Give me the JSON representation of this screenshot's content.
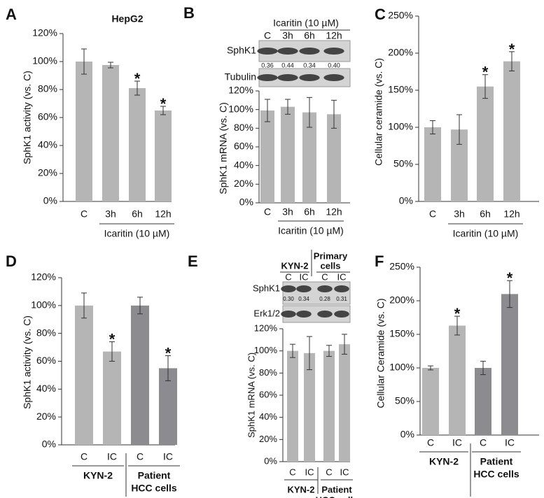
{
  "chart_data": [
    {
      "type": "bar",
      "panel": "A",
      "title": "HepG2",
      "y_label": "SphK1 activity (vs. C)",
      "categories": [
        "C",
        "3h",
        "6h",
        "12h"
      ],
      "values": [
        100,
        97.5,
        81,
        65
      ],
      "errors": [
        9,
        2,
        5,
        3
      ],
      "colors": [
        "#b5b5b5",
        "#b5b5b5",
        "#b5b5b5",
        "#b5b5b5"
      ],
      "significance": [
        null,
        null,
        "*",
        "*"
      ],
      "ylim": [
        0,
        120
      ],
      "yticks": [
        {
          "value": 0,
          "label": "0%"
        },
        {
          "value": 20,
          "label": "20%"
        },
        {
          "value": 40,
          "label": "40%"
        },
        {
          "value": 60,
          "label": "60%"
        },
        {
          "value": 80,
          "label": "80%"
        },
        {
          "value": 100,
          "label": "100%"
        },
        {
          "value": 120,
          "label": "120%"
        }
      ],
      "groups": [
        [
          "Icaritin (10 µM)"
        ]
      ]
    },
    {
      "type": "bar",
      "panel": "B",
      "y_label": "SphK1 mRNA (vs. C)",
      "categories": [
        "C",
        "3h",
        "6h",
        "12h"
      ],
      "values": [
        99,
        103,
        97,
        95
      ],
      "errors": [
        12,
        8,
        16,
        15
      ],
      "colors": [
        "#b5b5b5",
        "#b5b5b5",
        "#b5b5b5",
        "#b5b5b5"
      ],
      "ylim": [
        0,
        120
      ],
      "yticks": [
        {
          "value": 0,
          "label": "0%"
        },
        {
          "value": 20,
          "label": "20%"
        },
        {
          "value": 40,
          "label": "40%"
        },
        {
          "value": 60,
          "label": "60%"
        },
        {
          "value": 80,
          "label": "80%"
        },
        {
          "value": 100,
          "label": "100%"
        },
        {
          "value": 120,
          "label": "120%"
        }
      ],
      "groups": [
        [
          "Icaritin (10 µM)"
        ]
      ],
      "blot": {
        "header": [
          [
            "Icaritin (10 µM)"
          ]
        ],
        "columns": [
          "C",
          "3h",
          "6h",
          "12h"
        ],
        "rows": [
          {
            "name": "SphK1",
            "values": [
              "0.36",
              "0.44",
              "0.34",
              "0.40"
            ]
          },
          {
            "name": "Tubulin"
          }
        ]
      }
    },
    {
      "type": "bar",
      "panel": "C",
      "y_label": "Cellular ceramide (vs. C)",
      "categories": [
        "C",
        "3h",
        "6h",
        "12h"
      ],
      "values": [
        100,
        97,
        155,
        189
      ],
      "errors": [
        9,
        20,
        16,
        13
      ],
      "colors": [
        "#b5b5b5",
        "#b5b5b5",
        "#b5b5b5",
        "#b5b5b5"
      ],
      "significance": [
        null,
        null,
        "*",
        "*"
      ],
      "ylim": [
        0,
        250
      ],
      "yticks": [
        {
          "value": 0,
          "label": "0%"
        },
        {
          "value": 50,
          "label": "50%"
        },
        {
          "value": 100,
          "label": "100%"
        },
        {
          "value": 150,
          "label": "150%"
        },
        {
          "value": 200,
          "label": "200%"
        },
        {
          "value": 250,
          "label": "250%"
        }
      ],
      "groups": [
        [
          "Icaritin (10 µM)"
        ]
      ]
    },
    {
      "type": "bar",
      "panel": "D",
      "y_label": "SphK1 activity (vs. C)",
      "categories": [
        "C",
        "IC",
        "C",
        "IC"
      ],
      "values": [
        100,
        67,
        100,
        55
      ],
      "errors": [
        9,
        7,
        6,
        9
      ],
      "colors": [
        "#b5b5b5",
        "#b5b5b5",
        "#8b8b90",
        "#8b8b90"
      ],
      "significance": [
        null,
        "*",
        null,
        "*"
      ],
      "ylim": [
        0,
        120
      ],
      "yticks": [
        {
          "value": 0,
          "label": "0%"
        },
        {
          "value": 20,
          "label": "20%"
        },
        {
          "value": 40,
          "label": "40%"
        },
        {
          "value": 60,
          "label": "60%"
        },
        {
          "value": 80,
          "label": "80%"
        },
        {
          "value": 100,
          "label": "100%"
        },
        {
          "value": 120,
          "label": "120%"
        }
      ],
      "groups": [
        [
          "KYN-2"
        ],
        [
          "Patient",
          "HCC cells"
        ]
      ]
    },
    {
      "type": "bar",
      "panel": "E",
      "y_label": "SphK1 mRNA (vs. C)",
      "categories": [
        "C",
        "IC",
        "C",
        "IC"
      ],
      "values": [
        100,
        98,
        100,
        106
      ],
      "errors": [
        6,
        15,
        5,
        9
      ],
      "colors": [
        "#b5b5b5",
        "#b5b5b5",
        "#b5b5b5",
        "#b5b5b5"
      ],
      "ylim": [
        0,
        120
      ],
      "yticks": [
        {
          "value": 0,
          "label": "0%"
        },
        {
          "value": 20,
          "label": "20%"
        },
        {
          "value": 40,
          "label": "40%"
        },
        {
          "value": 60,
          "label": "60%"
        },
        {
          "value": 80,
          "label": "80%"
        },
        {
          "value": 100,
          "label": "100%"
        },
        {
          "value": 120,
          "label": "120%"
        }
      ],
      "groups": [
        [
          "KYN-2"
        ],
        [
          "Patient",
          "HCC cells"
        ]
      ],
      "blot": {
        "header": [
          [
            "KYN-2"
          ],
          [
            "Primary",
            "cells"
          ]
        ],
        "columns": [
          "C",
          "IC",
          "C",
          "IC"
        ],
        "rows": [
          {
            "name": "SphK1",
            "values": [
              "0.30",
              "0.34",
              "0.28",
              "0.31"
            ]
          },
          {
            "name": "Erk1/2"
          }
        ]
      }
    },
    {
      "type": "bar",
      "panel": "F",
      "y_label": "Cellular Ceramide (vs. C)",
      "categories": [
        "C",
        "IC",
        "C",
        "IC"
      ],
      "values": [
        100,
        163,
        100,
        210
      ],
      "errors": [
        3,
        14,
        10,
        20
      ],
      "colors": [
        "#b5b5b5",
        "#b5b5b5",
        "#8b8b90",
        "#8b8b90"
      ],
      "significance": [
        null,
        "*",
        null,
        "*"
      ],
      "ylim": [
        0,
        250
      ],
      "yticks": [
        {
          "value": 0,
          "label": "0%"
        },
        {
          "value": 50,
          "label": "50%"
        },
        {
          "value": 100,
          "label": "100%"
        },
        {
          "value": 150,
          "label": "150%"
        },
        {
          "value": 200,
          "label": "200%"
        },
        {
          "value": 250,
          "label": "250%"
        }
      ],
      "groups": [
        [
          "KYN-2"
        ],
        [
          "Patient",
          "HCC cells"
        ]
      ]
    }
  ]
}
